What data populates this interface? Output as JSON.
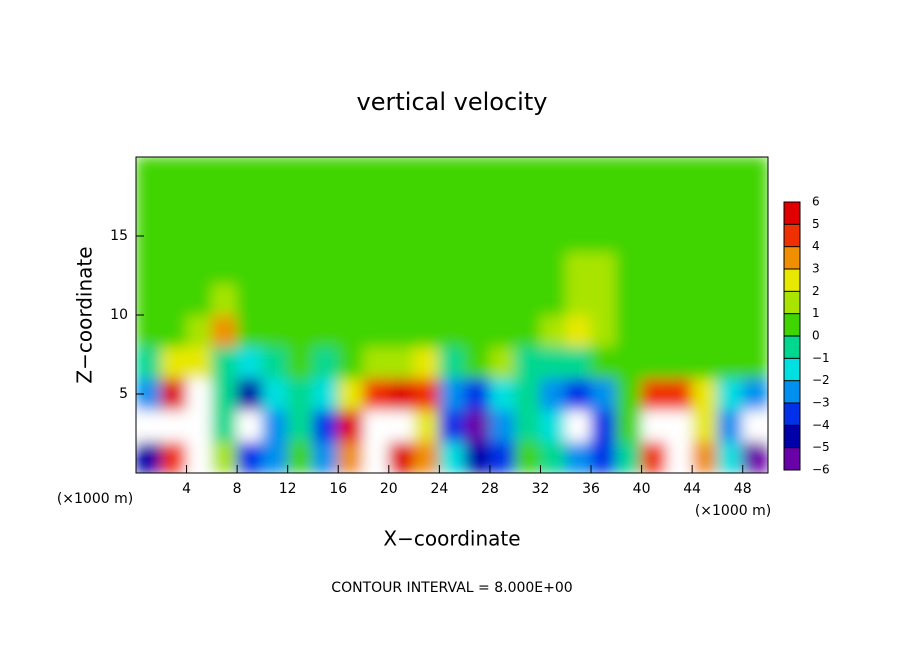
{
  "chart_data": {
    "type": "contourf",
    "title": "vertical velocity",
    "xlabel": "X−coordinate",
    "ylabel": "Z−coordinate",
    "x_unit": "(×1000 m)",
    "x_unit_right": "(×1000 m)",
    "footer": "CONTOUR INTERVAL = 8.000E+00",
    "xlim": [
      0,
      50
    ],
    "xticks": [
      4,
      8,
      12,
      16,
      20,
      24,
      28,
      32,
      36,
      40,
      44,
      48
    ],
    "ylim": [
      0,
      20
    ],
    "yticks": [
      5,
      10,
      15
    ],
    "x": [
      1,
      3,
      5,
      7,
      9,
      11,
      13,
      15,
      17,
      19,
      21,
      23,
      25,
      27,
      29,
      31,
      33,
      35,
      37,
      39,
      41,
      43,
      45,
      47,
      49
    ],
    "y": [
      1,
      3,
      5,
      7,
      9,
      11,
      13,
      15,
      17,
      19
    ],
    "z": [
      [
        -5,
        4,
        6,
        1,
        -4,
        -3,
        0,
        -3,
        3,
        6,
        5,
        3,
        -2,
        -5,
        -4,
        0,
        -1,
        -3,
        -4,
        -1,
        4,
        6,
        3,
        -2,
        -6
      ],
      [
        -7,
        6,
        7,
        -1,
        -7,
        -3,
        -1,
        -4,
        5,
        7,
        6,
        2,
        -4,
        -6,
        -3,
        -1,
        -2,
        -7,
        -4,
        0,
        6,
        7,
        2,
        -3,
        -7
      ],
      [
        -3,
        5,
        6,
        -1,
        -5,
        -2,
        -1,
        -2,
        2,
        4,
        5,
        4,
        -3,
        -4,
        -2,
        -1,
        -3,
        -4,
        -3,
        0,
        4,
        4,
        2,
        -2,
        -3
      ],
      [
        -1,
        2,
        2,
        -1,
        -2,
        -1,
        0,
        -1,
        0,
        1,
        1,
        2,
        -1,
        0,
        1,
        -1,
        -1,
        -1,
        0,
        0,
        0,
        0,
        0,
        0,
        0
      ],
      [
        0.5,
        0.5,
        1,
        3,
        0.5,
        0.5,
        0.5,
        0.5,
        0.5,
        0.5,
        0.5,
        0.5,
        0.5,
        0.5,
        0.5,
        0.5,
        1,
        2,
        1,
        0.5,
        0.5,
        0.5,
        0.5,
        0.5,
        0.5
      ],
      [
        0.5,
        0.5,
        0.5,
        1,
        0.5,
        0.5,
        0.5,
        0.5,
        0.5,
        0.5,
        0.5,
        0.5,
        0.5,
        0.5,
        0.5,
        0.5,
        0.5,
        1.5,
        1,
        0.5,
        0.5,
        0.5,
        0.5,
        0.5,
        0.5
      ],
      [
        0.5,
        0.5,
        0.5,
        0.5,
        0.5,
        0.5,
        0.5,
        0.5,
        0.5,
        0.5,
        0.5,
        0.5,
        0.5,
        0.5,
        0.5,
        0.5,
        0.5,
        1,
        1,
        0.5,
        0.5,
        0.5,
        0.5,
        0.5,
        0.5
      ],
      [
        0.5,
        0.5,
        0.5,
        0.5,
        0.5,
        0.5,
        0.5,
        0.5,
        0.5,
        0.5,
        0.5,
        0.5,
        0.5,
        0.5,
        0.5,
        0.5,
        0.5,
        0.5,
        0.5,
        0.5,
        0.5,
        0.5,
        0.5,
        0.5,
        0.5
      ],
      [
        0.5,
        0.5,
        0.5,
        0.5,
        0.5,
        0.5,
        0.5,
        0.5,
        0.5,
        0.5,
        0.5,
        0.5,
        0.5,
        0.5,
        0.5,
        0.5,
        0.5,
        0.5,
        0.5,
        0.5,
        0.5,
        0.5,
        0.5,
        0.5,
        0.5
      ],
      [
        0.5,
        0.5,
        0.5,
        0.5,
        0.5,
        0.5,
        0.5,
        0.5,
        0.5,
        0.5,
        0.5,
        0.5,
        0.5,
        0.5,
        0.5,
        0.5,
        0.5,
        0.5,
        0.5,
        0.5,
        0.5,
        0.5,
        0.5,
        0.5,
        0.5
      ]
    ],
    "clim": [
      -6,
      6
    ],
    "colors": [
      "#6a00a8",
      "#0000a8",
      "#0030e8",
      "#0090f0",
      "#00e0e0",
      "#00d890",
      "#40d400",
      "#a8e400",
      "#e8e800",
      "#f09000",
      "#f03000",
      "#e00000"
    ],
    "over_color": "#ffffff",
    "cticks": [
      {
        "value": -6,
        "label": "−6"
      },
      {
        "value": -5,
        "label": "−5"
      },
      {
        "value": -4,
        "label": "−4"
      },
      {
        "value": -3,
        "label": "−3"
      },
      {
        "value": -2,
        "label": "−2"
      },
      {
        "value": -1,
        "label": "−1"
      },
      0,
      1,
      2,
      3,
      4,
      5,
      6
    ]
  }
}
